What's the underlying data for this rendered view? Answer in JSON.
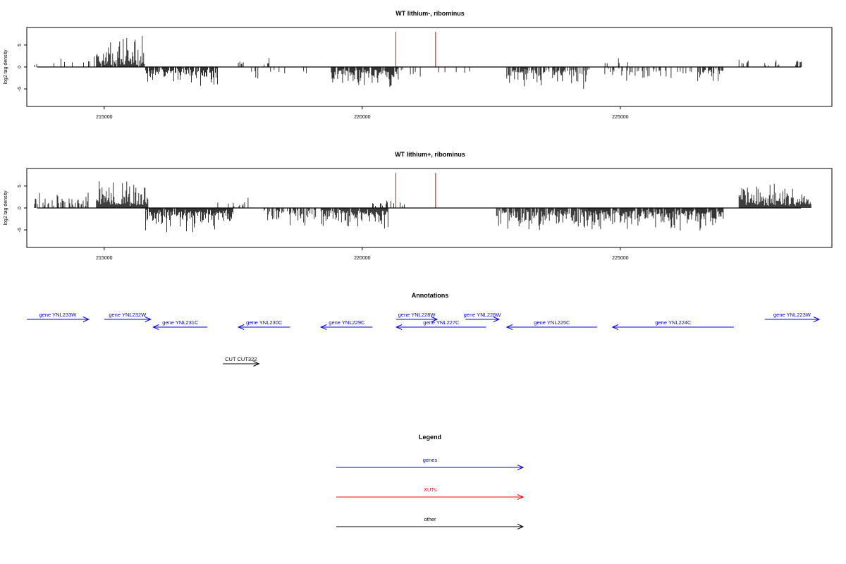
{
  "chart_data": [
    {
      "type": "bar",
      "title": "WT lithium-, ribominus",
      "ylabel": "log2 tag density",
      "xlabel": "",
      "xlim": [
        213500,
        229100
      ],
      "ylim": [
        -9,
        9
      ],
      "x_ticks": [
        215000,
        220000,
        225000
      ],
      "x_tick_labels": [
        "215000",
        "220000",
        "225000"
      ],
      "y_ticks": [
        -5,
        0,
        5
      ],
      "y_tick_labels": [
        "-5",
        "0",
        "5"
      ],
      "grid": false,
      "markers": {
        "color": "#ff0000",
        "x": [
          220650,
          221420
        ],
        "y_range": [
          0,
          8
        ]
      },
      "series": [
        {
          "strand": "+",
          "color": "#000000",
          "segments": [
            {
              "start": 213650,
              "end": 213800,
              "density": 0.25,
              "max": 2.5,
              "seed": 11
            },
            {
              "start": 214000,
              "end": 214850,
              "density": 0.12,
              "max": 3.5,
              "seed": 12
            },
            {
              "start": 214850,
              "end": 215800,
              "density": 0.95,
              "max": 7.2,
              "seed": 13
            },
            {
              "start": 217600,
              "end": 217700,
              "density": 0.3,
              "max": 2.8,
              "seed": 14
            },
            {
              "start": 218100,
              "end": 218200,
              "density": 0.3,
              "max": 2.5,
              "seed": 15
            },
            {
              "start": 224650,
              "end": 225300,
              "density": 0.1,
              "max": 3.2,
              "seed": 16
            },
            {
              "start": 227300,
              "end": 227500,
              "density": 0.3,
              "max": 3.3,
              "seed": 17
            },
            {
              "start": 227800,
              "end": 228100,
              "density": 0.45,
              "max": 3.0,
              "seed": 18
            },
            {
              "start": 228400,
              "end": 228550,
              "density": 0.5,
              "max": 2.3,
              "seed": 19
            }
          ]
        },
        {
          "strand": "-",
          "color": "#000000",
          "segments": [
            {
              "start": 215800,
              "end": 217200,
              "density": 0.8,
              "max": 4.3,
              "seed": 21
            },
            {
              "start": 217800,
              "end": 218500,
              "density": 0.15,
              "max": 3.5,
              "seed": 22
            },
            {
              "start": 218700,
              "end": 219000,
              "density": 0.2,
              "max": 3.0,
              "seed": 23
            },
            {
              "start": 219400,
              "end": 220700,
              "density": 0.85,
              "max": 5.0,
              "seed": 24
            },
            {
              "start": 220700,
              "end": 222100,
              "density": 0.08,
              "max": 2.5,
              "seed": 25
            },
            {
              "start": 222800,
              "end": 224400,
              "density": 0.65,
              "max": 5.0,
              "seed": 26
            },
            {
              "start": 224700,
              "end": 226400,
              "density": 0.35,
              "max": 4.0,
              "seed": 27
            },
            {
              "start": 226500,
              "end": 227000,
              "density": 0.6,
              "max": 3.2,
              "seed": 28
            }
          ]
        }
      ]
    },
    {
      "type": "bar",
      "title": "WT lithium+, ribominus",
      "ylabel": "log2 tag density",
      "xlabel": "",
      "xlim": [
        213500,
        229100
      ],
      "ylim": [
        -9,
        9
      ],
      "x_ticks": [
        215000,
        220000,
        225000
      ],
      "x_tick_labels": [
        "215000",
        "220000",
        "225000"
      ],
      "y_ticks": [
        -5,
        0,
        5
      ],
      "y_tick_labels": [
        "-5",
        "0",
        "5"
      ],
      "grid": false,
      "markers": {
        "color": "#ff0000",
        "x": [
          220650,
          221420
        ],
        "y_range": [
          0,
          8
        ]
      },
      "series": [
        {
          "strand": "+",
          "color": "#000000",
          "segments": [
            {
              "start": 213650,
              "end": 214700,
              "density": 0.45,
              "max": 3.5,
              "seed": 31
            },
            {
              "start": 214850,
              "end": 215850,
              "density": 1.0,
              "max": 8.0,
              "seed": 32
            },
            {
              "start": 217200,
              "end": 217800,
              "density": 0.25,
              "max": 2.5,
              "seed": 33
            },
            {
              "start": 220200,
              "end": 220900,
              "density": 0.35,
              "max": 2.2,
              "seed": 34
            },
            {
              "start": 227300,
              "end": 228700,
              "density": 1.0,
              "max": 5.5,
              "seed": 35
            }
          ]
        },
        {
          "strand": "-",
          "color": "#000000",
          "segments": [
            {
              "start": 215800,
              "end": 217500,
              "density": 0.95,
              "max": 5.5,
              "seed": 41
            },
            {
              "start": 218100,
              "end": 219100,
              "density": 0.6,
              "max": 4.0,
              "seed": 42
            },
            {
              "start": 219200,
              "end": 220500,
              "density": 0.95,
              "max": 5.3,
              "seed": 43
            },
            {
              "start": 222600,
              "end": 224400,
              "density": 0.85,
              "max": 5.3,
              "seed": 44
            },
            {
              "start": 224400,
              "end": 227000,
              "density": 0.9,
              "max": 5.3,
              "seed": 45
            }
          ]
        }
      ]
    }
  ],
  "annotations": {
    "title": "Annotations",
    "features": [
      {
        "label": "gene YNL233W",
        "kind": "gene",
        "strand": "+",
        "start": 213400,
        "end": 214700,
        "row": 0
      },
      {
        "label": "gene YNL232W",
        "kind": "gene",
        "strand": "+",
        "start": 215000,
        "end": 215900,
        "row": 0
      },
      {
        "label": "gene YNL231C",
        "kind": "gene",
        "strand": "-",
        "start": 215950,
        "end": 217000,
        "row": 1
      },
      {
        "label": "gene YNL230C",
        "kind": "gene",
        "strand": "-",
        "start": 217600,
        "end": 218600,
        "row": 1
      },
      {
        "label": "gene YNL229C",
        "kind": "gene",
        "strand": "-",
        "start": 219200,
        "end": 220200,
        "row": 1
      },
      {
        "label": "gene YNL228W",
        "kind": "gene",
        "strand": "+",
        "start": 220660,
        "end": 221450,
        "row": 0
      },
      {
        "label": "gene YNL227C",
        "kind": "gene",
        "strand": "-",
        "start": 220660,
        "end": 222400,
        "row": 1
      },
      {
        "label": "gene YNL226W",
        "kind": "gene",
        "strand": "+",
        "start": 222000,
        "end": 222650,
        "row": 0
      },
      {
        "label": "gene YNL225C",
        "kind": "gene",
        "strand": "-",
        "start": 222800,
        "end": 224550,
        "row": 1
      },
      {
        "label": "gene YNL224C",
        "kind": "gene",
        "strand": "-",
        "start": 224850,
        "end": 227200,
        "row": 1
      },
      {
        "label": "gene YNL223W",
        "kind": "gene",
        "strand": "+",
        "start": 227800,
        "end": 229400,
        "row": 0
      },
      {
        "label": "CUT CUT322",
        "kind": "other",
        "strand": "+",
        "start": 217300,
        "end": 218000,
        "row": 2
      }
    ]
  },
  "legend": {
    "title": "Legend",
    "items": [
      {
        "label": "genes",
        "color": "#0000ff"
      },
      {
        "label": "XUTs",
        "color": "#ff0000"
      },
      {
        "label": "other",
        "color": "#000000"
      }
    ]
  }
}
